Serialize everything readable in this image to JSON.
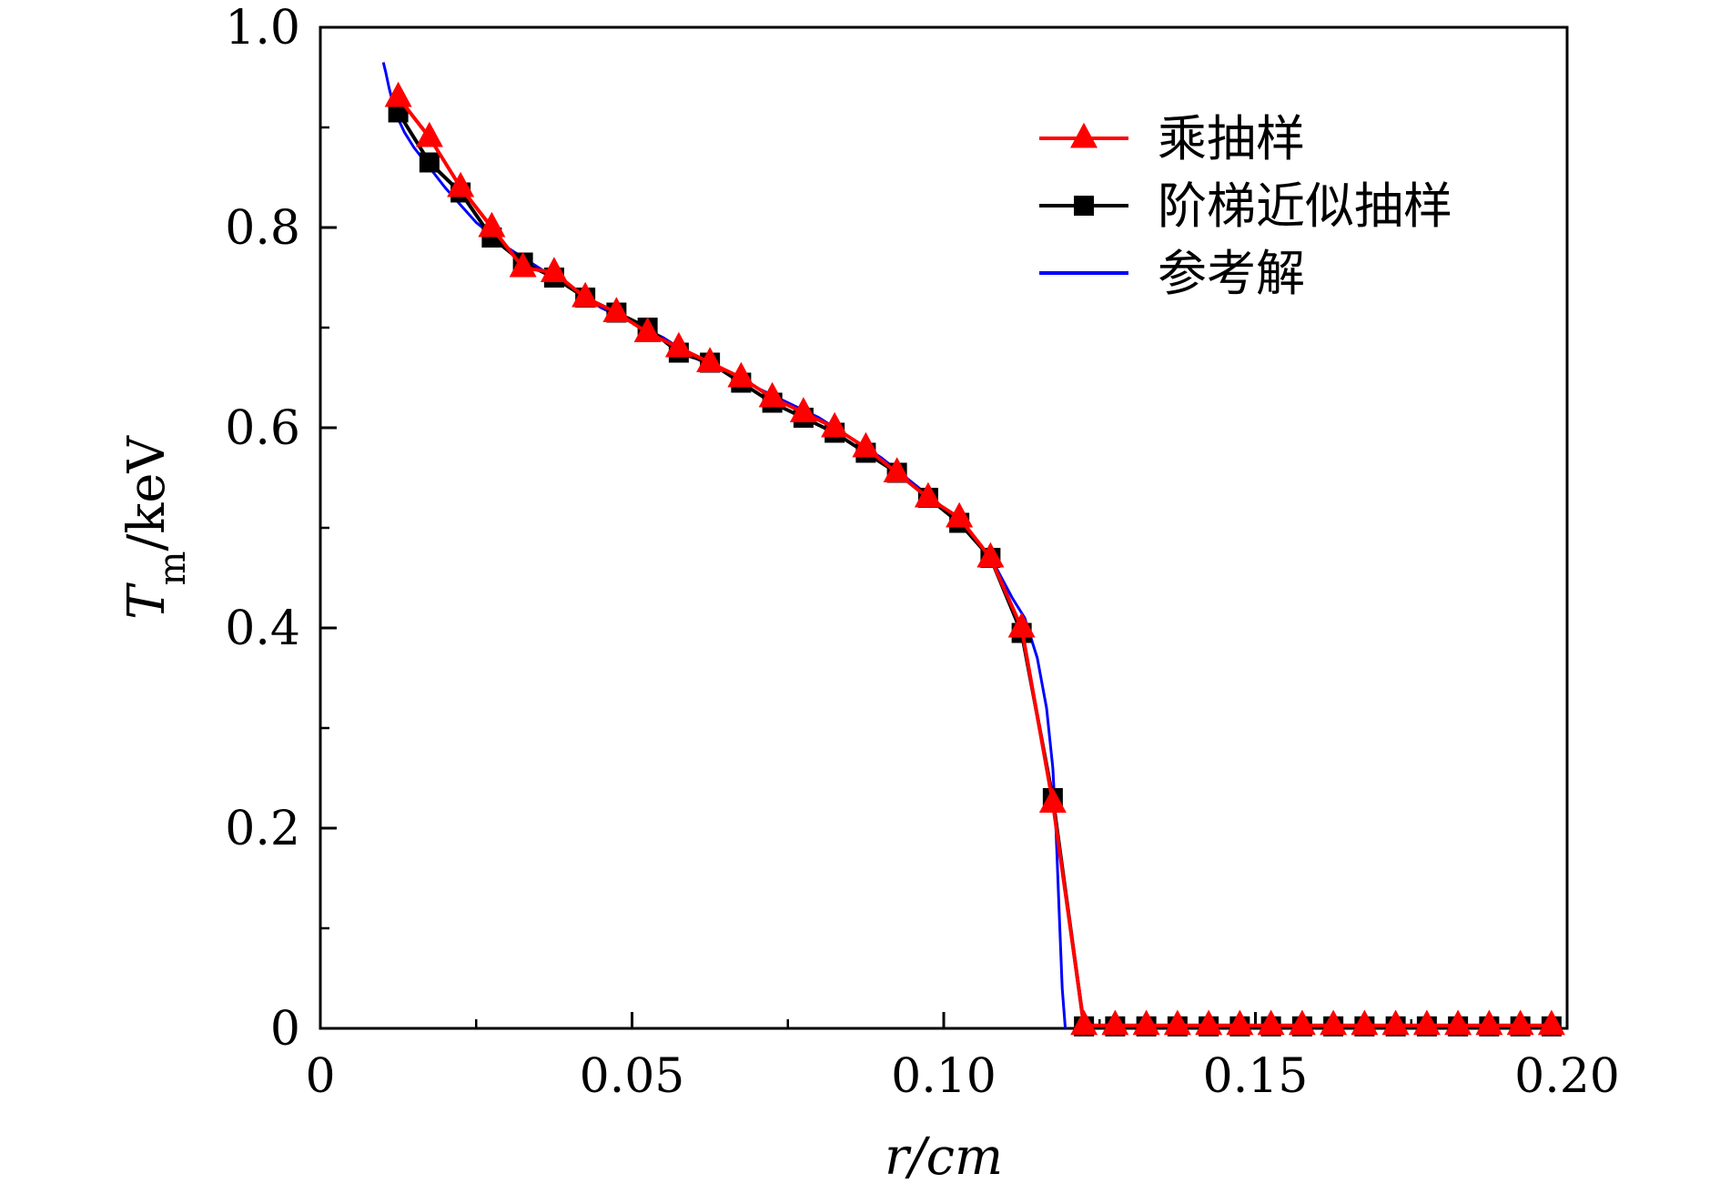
{
  "chart_data": {
    "type": "line",
    "title": "",
    "xlabel": "r/cm",
    "ylabel": "T_m/keV",
    "xlim": [
      0,
      0.2
    ],
    "ylim": [
      0,
      1.0
    ],
    "x_ticks": [
      0,
      0.05,
      0.1,
      0.15,
      0.2
    ],
    "x_tick_labels": [
      "0",
      "0.05",
      "0.10",
      "0.15",
      "0.20"
    ],
    "y_ticks": [
      0,
      0.2,
      0.4,
      0.6,
      0.8,
      1.0
    ],
    "y_tick_labels": [
      "0",
      "0.2",
      "0.4",
      "0.6",
      "0.8",
      "1.0"
    ],
    "grid": false,
    "legend_position": "top-right",
    "series": [
      {
        "name": "乘抽样",
        "color": "#ff0000",
        "marker": "triangle",
        "x": [
          0.0125,
          0.0175,
          0.0225,
          0.0275,
          0.0325,
          0.0375,
          0.0425,
          0.0475,
          0.0525,
          0.0575,
          0.0625,
          0.0675,
          0.0725,
          0.0775,
          0.0825,
          0.0875,
          0.0925,
          0.0975,
          0.1025,
          0.1075,
          0.1125,
          0.1175,
          0.1225,
          0.1275,
          0.1325,
          0.1375,
          0.1425,
          0.1475,
          0.1525,
          0.1575,
          0.1625,
          0.1675,
          0.1725,
          0.1775,
          0.1825,
          0.1875,
          0.1925,
          0.1975
        ],
        "y": [
          0.93,
          0.89,
          0.84,
          0.8,
          0.76,
          0.755,
          0.73,
          0.715,
          0.695,
          0.68,
          0.665,
          0.65,
          0.63,
          0.615,
          0.6,
          0.58,
          0.555,
          0.53,
          0.51,
          0.47,
          0.4,
          0.225,
          0.003,
          0.003,
          0.003,
          0.003,
          0.003,
          0.003,
          0.003,
          0.003,
          0.003,
          0.003,
          0.003,
          0.003,
          0.003,
          0.003,
          0.003,
          0.003
        ]
      },
      {
        "name": "阶梯近似抽样",
        "color": "#000000",
        "marker": "square",
        "x": [
          0.0125,
          0.0175,
          0.0225,
          0.0275,
          0.0325,
          0.0375,
          0.0425,
          0.0475,
          0.0525,
          0.0575,
          0.0625,
          0.0675,
          0.0725,
          0.0775,
          0.0825,
          0.0875,
          0.0925,
          0.0975,
          0.1025,
          0.1075,
          0.1125,
          0.1175,
          0.1225,
          0.1275,
          0.1325,
          0.1375,
          0.1425,
          0.1475,
          0.1525,
          0.1575,
          0.1625,
          0.1675,
          0.1725,
          0.1775,
          0.1825,
          0.1875,
          0.1925,
          0.1975
        ],
        "y": [
          0.915,
          0.865,
          0.835,
          0.79,
          0.765,
          0.75,
          0.73,
          0.715,
          0.7,
          0.675,
          0.665,
          0.645,
          0.625,
          0.61,
          0.595,
          0.575,
          0.555,
          0.53,
          0.505,
          0.47,
          0.395,
          0.23,
          0.002,
          0.002,
          0.002,
          0.002,
          0.002,
          0.002,
          0.002,
          0.002,
          0.002,
          0.002,
          0.002,
          0.002,
          0.002,
          0.002,
          0.002,
          0.002
        ]
      },
      {
        "name": "参考解",
        "color": "#0000ff",
        "marker": "none",
        "x": [
          0.0101,
          0.0105,
          0.011,
          0.012,
          0.0135,
          0.015,
          0.0175,
          0.02,
          0.025,
          0.03,
          0.035,
          0.04,
          0.045,
          0.05,
          0.055,
          0.06,
          0.065,
          0.07,
          0.075,
          0.08,
          0.085,
          0.09,
          0.095,
          0.1,
          0.105,
          0.108,
          0.111,
          0.113,
          0.115,
          0.1165,
          0.1175,
          0.118,
          0.1185,
          0.119,
          0.1195
        ],
        "y": [
          0.965,
          0.955,
          0.94,
          0.915,
          0.895,
          0.88,
          0.86,
          0.84,
          0.805,
          0.78,
          0.76,
          0.74,
          0.72,
          0.705,
          0.69,
          0.67,
          0.655,
          0.64,
          0.625,
          0.61,
          0.59,
          0.57,
          0.545,
          0.52,
          0.49,
          0.465,
          0.43,
          0.41,
          0.37,
          0.32,
          0.26,
          0.2,
          0.12,
          0.04,
          0.0
        ]
      }
    ]
  }
}
